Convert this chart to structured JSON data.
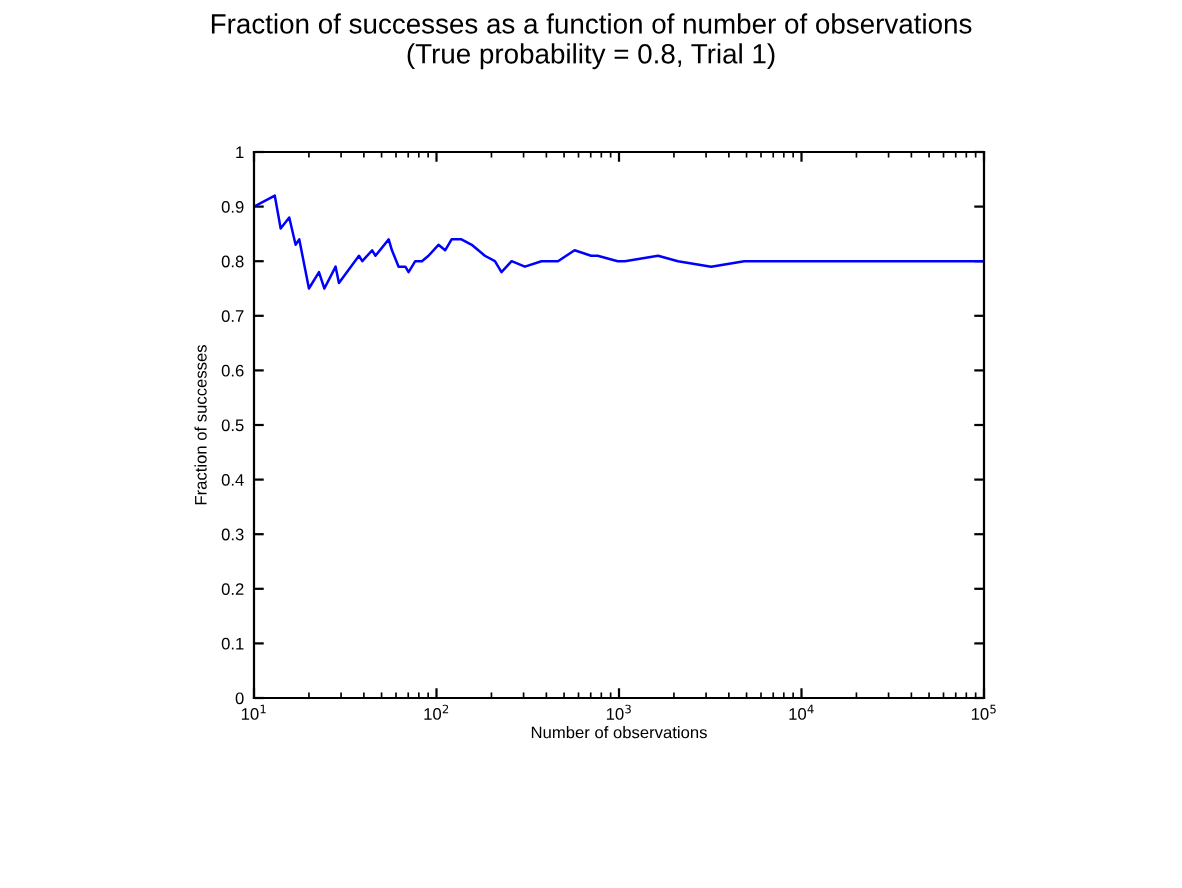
{
  "chart_data": {
    "type": "line",
    "title": "Fraction of successes as a function of number of observations\n(True probability = 0.8, Trial 1)",
    "xlabel": "Number of observations",
    "ylabel": "Fraction of successes",
    "log": "x",
    "grid": false,
    "legend": false,
    "x": [
      10,
      13.0,
      14.0,
      15.6,
      16.9,
      17.7,
      20.0,
      22.7,
      24.3,
      28.0,
      29.2,
      37.6,
      39.2,
      44.4,
      46.3,
      54.7,
      57.0,
      62.0,
      67.5,
      70.3,
      76.5,
      83.2,
      90.4,
      102.5,
      111.5,
      121,
      137,
      156,
      184,
      209,
      227,
      258,
      305,
      376,
      463,
      571,
      703,
      764,
      984,
      1076,
      1637,
      2104,
      3199,
      4853,
      8720,
      20000,
      50000,
      100000
    ],
    "series": [
      {
        "color": "#0000ff",
        "values": [
          0.9,
          0.92,
          0.86,
          0.88,
          0.83,
          0.84,
          0.75,
          0.78,
          0.75,
          0.79,
          0.76,
          0.81,
          0.8,
          0.82,
          0.81,
          0.84,
          0.82,
          0.79,
          0.79,
          0.78,
          0.8,
          0.8,
          0.81,
          0.83,
          0.82,
          0.84,
          0.84,
          0.83,
          0.81,
          0.8,
          0.78,
          0.8,
          0.79,
          0.8,
          0.8,
          0.82,
          0.81,
          0.81,
          0.8,
          0.8,
          0.81,
          0.8,
          0.79,
          0.8,
          0.8,
          0.8,
          0.8,
          0.8
        ]
      }
    ],
    "xlim": [
      10,
      100000
    ],
    "xticks": [
      {
        "value": 10,
        "label": "10$^{1}$"
      },
      {
        "value": 100,
        "label": "10$^{2}$"
      },
      {
        "value": 1000,
        "label": "10$^{3}$"
      },
      {
        "value": 10000,
        "label": "10$^{4}$"
      },
      {
        "value": 100000,
        "label": "10$^{5}$"
      }
    ],
    "ylim": [
      0,
      1
    ],
    "yticks": [
      0,
      0.1,
      0.2,
      0.3,
      0.4,
      0.5,
      0.6,
      0.7,
      0.8,
      0.9,
      1
    ]
  }
}
